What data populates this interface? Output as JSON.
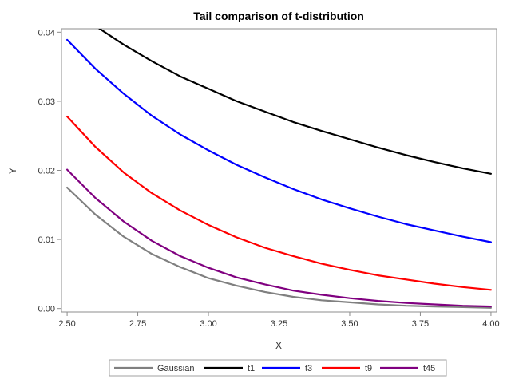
{
  "chart_data": {
    "type": "line",
    "title": "Tail comparison of t-distribution",
    "xlabel": "X",
    "ylabel": "Y",
    "xlim": [
      2.48,
      4.02
    ],
    "ylim": [
      -0.0005,
      0.0405
    ],
    "xticks": [
      "2.50",
      "2.75",
      "3.00",
      "3.25",
      "3.50",
      "3.75",
      "4.00"
    ],
    "yticks": [
      "0.00",
      "0.01",
      "0.02",
      "0.03",
      "0.04"
    ],
    "grid": false,
    "legend_position": "bottom",
    "x": [
      2.5,
      2.6,
      2.7,
      2.8,
      2.9,
      3.0,
      3.1,
      3.2,
      3.3,
      3.4,
      3.5,
      3.6,
      3.7,
      3.8,
      3.9,
      4.0
    ],
    "series": [
      {
        "name": "Gaussian",
        "color": "#808080",
        "values": [
          0.0175,
          0.0136,
          0.0104,
          0.0079,
          0.006,
          0.0044,
          0.0033,
          0.0024,
          0.0017,
          0.0012,
          0.0009,
          0.0006,
          0.0004,
          0.0003,
          0.0002,
          0.0001
        ]
      },
      {
        "name": "t1",
        "color": "#000000",
        "values": [
          0.0439,
          0.0409,
          0.0382,
          0.0358,
          0.0336,
          0.0318,
          0.03,
          0.0285,
          0.027,
          0.0257,
          0.0245,
          0.0233,
          0.0222,
          0.0212,
          0.0203,
          0.0195
        ]
      },
      {
        "name": "t3",
        "color": "#0000ff",
        "values": [
          0.0389,
          0.0347,
          0.0311,
          0.0279,
          0.0252,
          0.0229,
          0.0208,
          0.019,
          0.0173,
          0.0158,
          0.0145,
          0.0133,
          0.0122,
          0.0113,
          0.0104,
          0.0096
        ]
      },
      {
        "name": "t9",
        "color": "#ff0000",
        "values": [
          0.0278,
          0.0234,
          0.0197,
          0.0167,
          0.0142,
          0.0121,
          0.0103,
          0.0088,
          0.0076,
          0.0065,
          0.0056,
          0.0048,
          0.0042,
          0.0036,
          0.0031,
          0.0027
        ]
      },
      {
        "name": "t45",
        "color": "#800080",
        "values": [
          0.0201,
          0.016,
          0.0126,
          0.0098,
          0.0076,
          0.0059,
          0.0045,
          0.0035,
          0.0026,
          0.002,
          0.0015,
          0.0011,
          0.0008,
          0.0006,
          0.0004,
          0.0003
        ]
      }
    ]
  }
}
